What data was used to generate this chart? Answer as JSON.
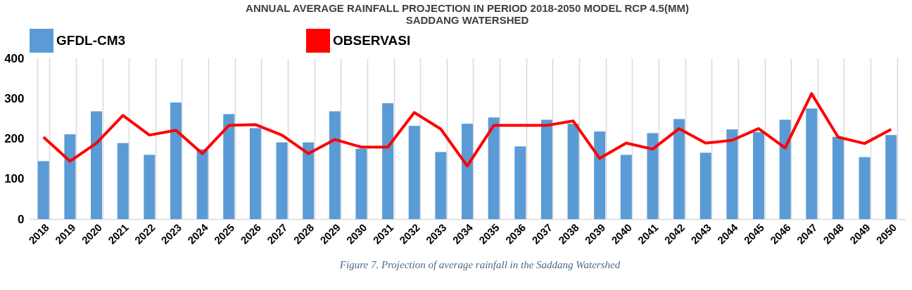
{
  "chart_data": {
    "type": "bar",
    "title": [
      "ANNUAL AVERAGE RAINFALL PROJECTION IN PERIOD 2018-2050 MODEL RCP 4.5(MM)",
      "SADDANG WATERSHED"
    ],
    "categories": [
      "2018",
      "2019",
      "2020",
      "2021",
      "2022",
      "2023",
      "2024",
      "2025",
      "2026",
      "2027",
      "2028",
      "2029",
      "2030",
      "2031",
      "2032",
      "2033",
      "2034",
      "2035",
      "2036",
      "2037",
      "2038",
      "2039",
      "2040",
      "2041",
      "2042",
      "2043",
      "2044",
      "2045",
      "2046",
      "2047",
      "2048",
      "2049",
      "2050"
    ],
    "series": [
      {
        "name": "GFDL-CM3",
        "color": "#5b9bd5",
        "values": [
          144,
          211,
          268,
          189,
          160,
          290,
          174,
          261,
          226,
          191,
          191,
          268,
          175,
          288,
          232,
          167,
          237,
          253,
          181,
          247,
          237,
          218,
          160,
          214,
          249,
          165,
          223,
          216,
          247,
          275,
          205,
          154,
          209
        ]
      },
      {
        "name": "OBSERVASI",
        "type": "line",
        "color": "#ff0000",
        "values": [
          204,
          144,
          189,
          258,
          209,
          221,
          163,
          233,
          235,
          209,
          163,
          198,
          179,
          179,
          265,
          224,
          132,
          233,
          233,
          233,
          244,
          151,
          189,
          174,
          225,
          189,
          196,
          225,
          177,
          312,
          204,
          188,
          223
        ]
      }
    ],
    "ylim": [
      0,
      400
    ],
    "yticks": [
      0,
      100,
      200,
      300,
      400
    ],
    "grid": "x",
    "legend": "top",
    "marker": "none",
    "line_style": "solid",
    "annotations": [
      "Figure 7. Projection of average rainfall in the Saddang Watershed"
    ]
  }
}
